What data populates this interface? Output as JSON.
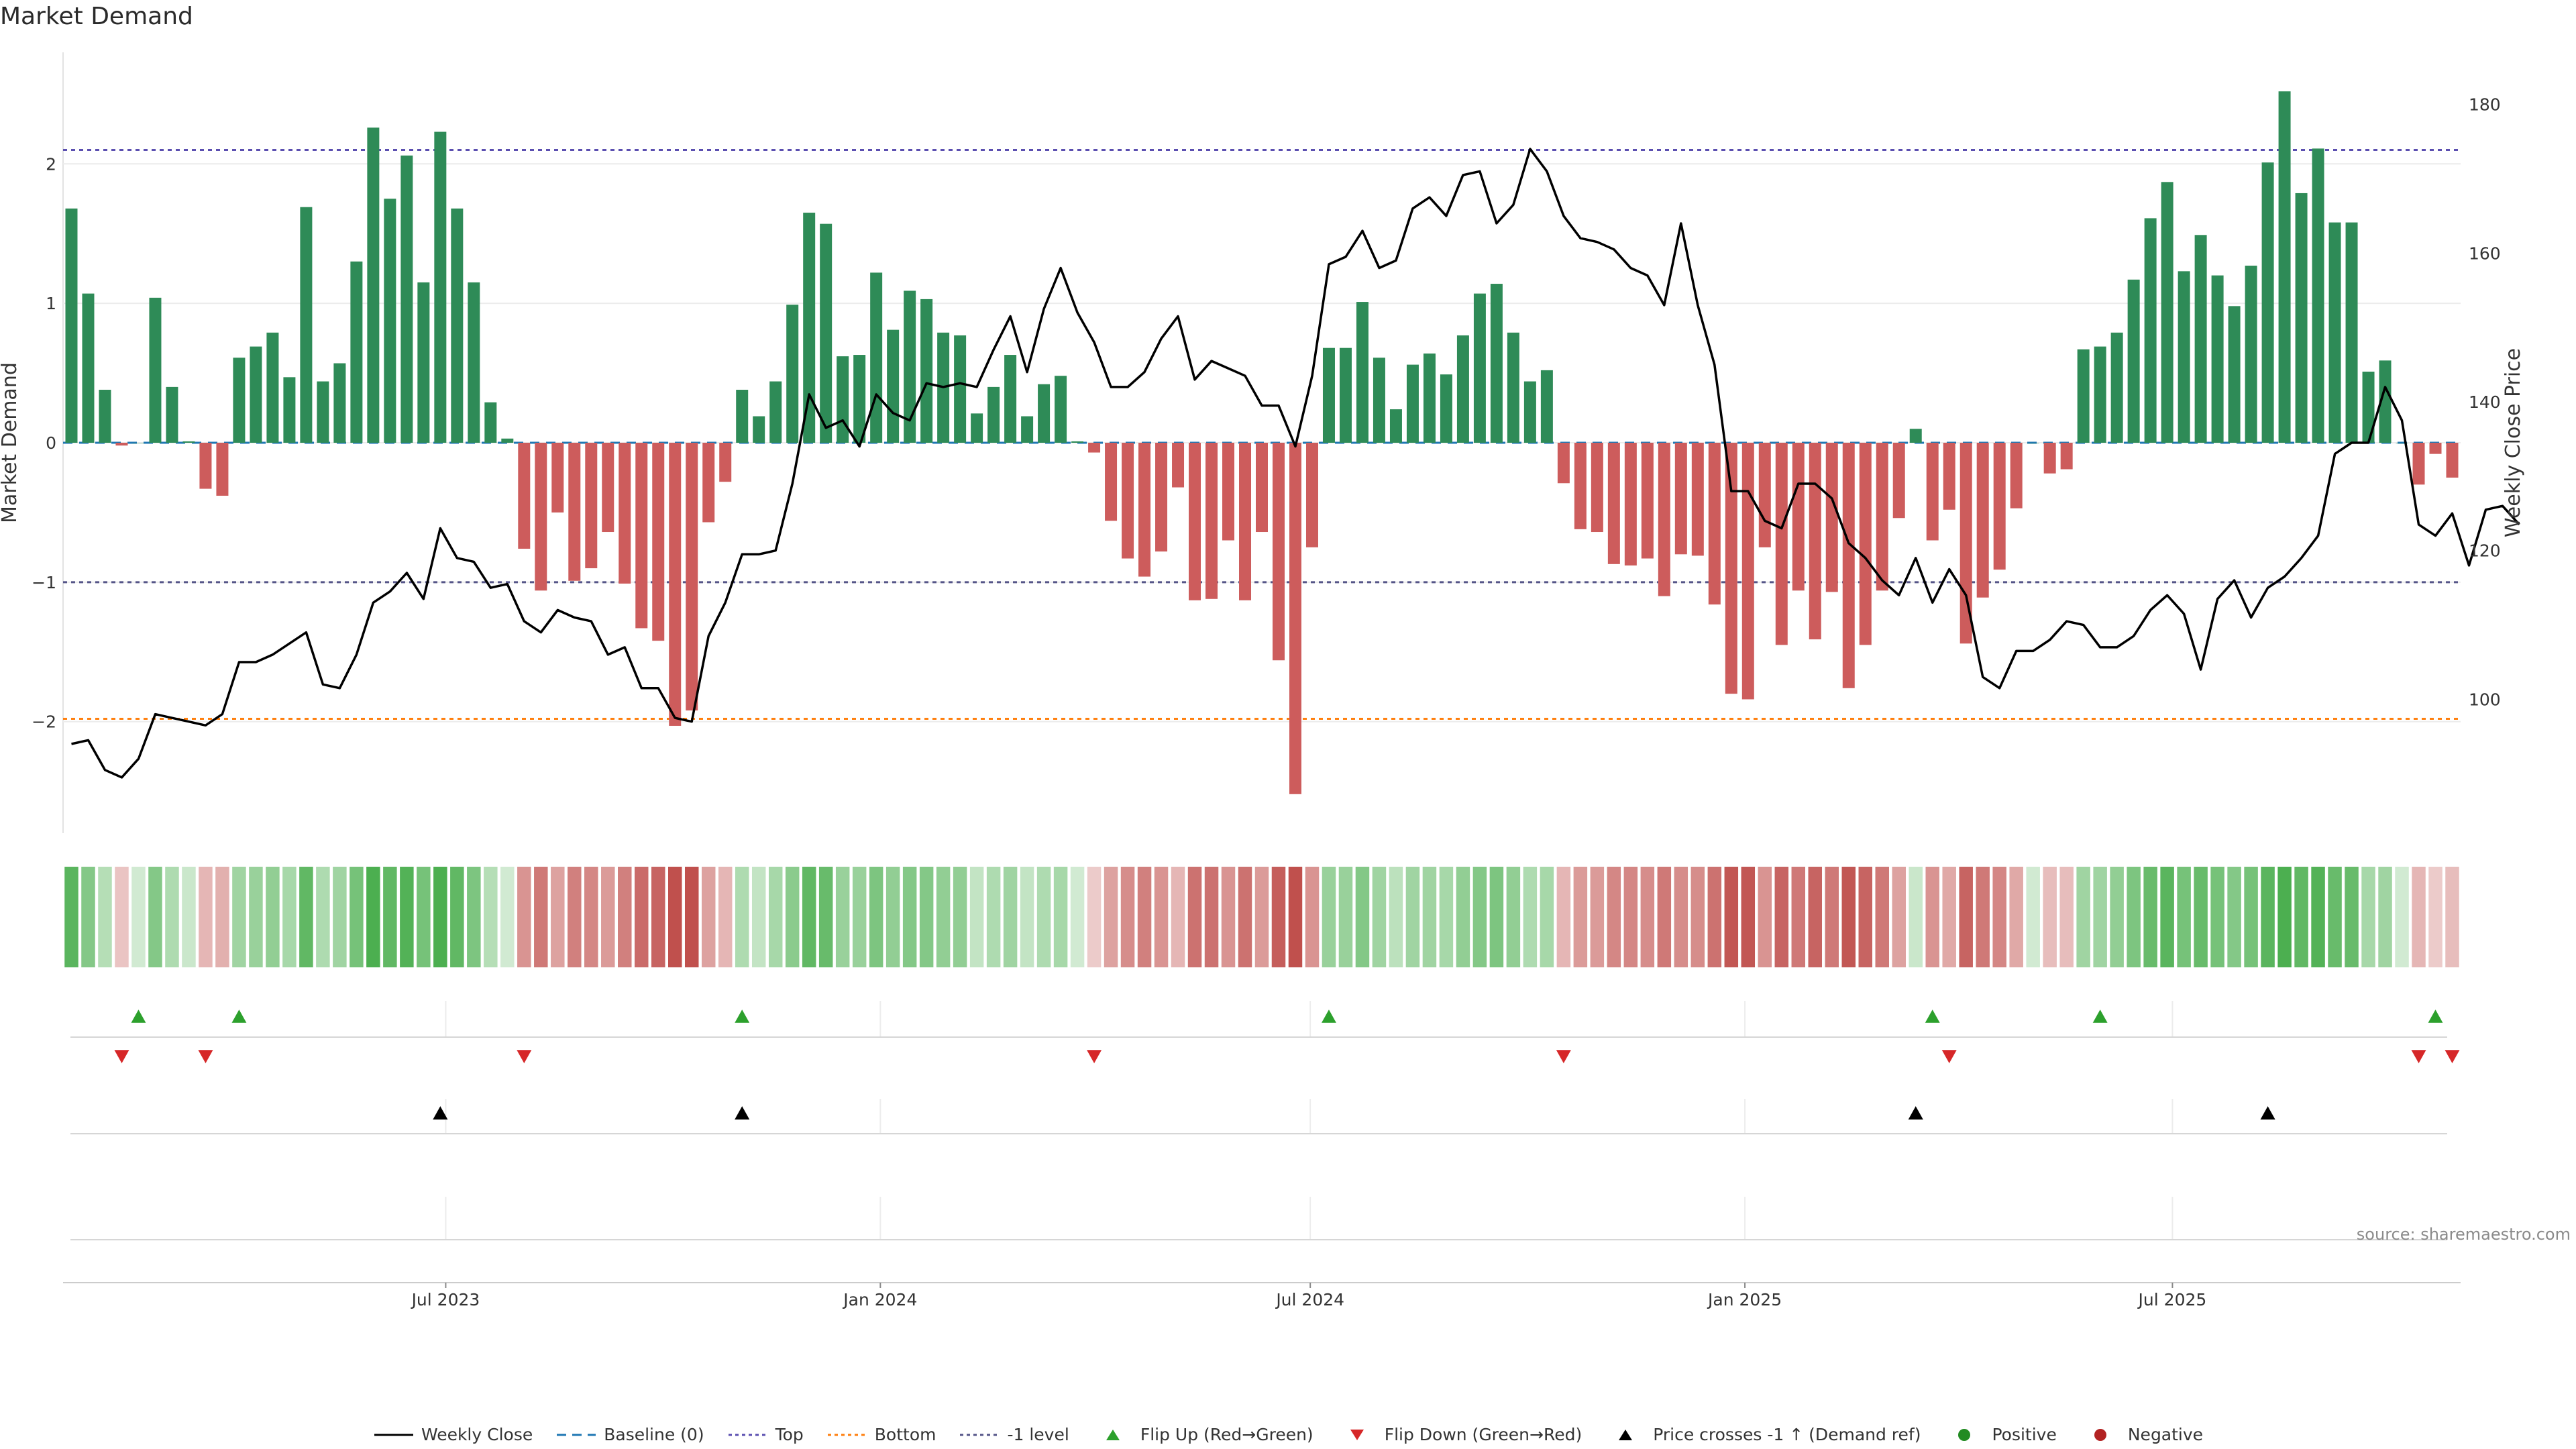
{
  "chart_data": {
    "type": "bar",
    "title": "Market Demand",
    "ylabel": "Market Demand",
    "y2label": "Weekly Close Price",
    "ylim": [
      -2.8,
      2.8
    ],
    "y2lim": [
      82,
      187
    ],
    "yticks": [
      -2,
      -1,
      0,
      1,
      2
    ],
    "y2ticks": [
      100,
      120,
      140,
      160,
      180
    ],
    "x_range": [
      "2023-01-20",
      "2025-10-31"
    ],
    "x_tick_labels": [
      "Jul 2023",
      "Jan 2024",
      "Jul 2024",
      "Jan 2025",
      "Jul 2025"
    ],
    "reference_lines": {
      "top": 2.1,
      "bottom": -1.98,
      "minus_one": -1.0,
      "baseline": 0
    },
    "demand": [
      1.68,
      1.07,
      0.38,
      -0.02,
      0,
      1.04,
      0.4,
      0.01,
      -0.33,
      -0.38,
      0.61,
      0.69,
      0.79,
      0.47,
      1.69,
      0.44,
      0.57,
      1.3,
      2.26,
      1.75,
      2.06,
      1.15,
      2.23,
      1.68,
      1.15,
      0.29,
      0.03,
      -0.76,
      -1.06,
      -0.5,
      -0.99,
      -0.9,
      -0.64,
      -1.01,
      -1.33,
      -1.42,
      -2.03,
      -1.92,
      -0.57,
      -0.28,
      0.38,
      0.19,
      0.44,
      0.99,
      1.65,
      1.57,
      0.62,
      0.63,
      1.22,
      0.81,
      1.09,
      1.03,
      0.79,
      0.77,
      0.21,
      0.4,
      0.63,
      0.19,
      0.42,
      0.48,
      0.01,
      -0.07,
      -0.56,
      -0.83,
      -0.96,
      -0.78,
      -0.32,
      -1.13,
      -1.12,
      -0.7,
      -1.13,
      -0.64,
      -1.56,
      -2.52,
      -0.75,
      0.68,
      0.68,
      1.01,
      0.61,
      0.24,
      0.56,
      0.64,
      0.49,
      0.77,
      1.07,
      1.14,
      0.79,
      0.44,
      0.52,
      -0.29,
      -0.62,
      -0.64,
      -0.87,
      -0.88,
      -0.83,
      -1.1,
      -0.8,
      -0.81,
      -1.16,
      -1.8,
      -1.84,
      -0.75,
      -1.45,
      -1.06,
      -1.41,
      -1.07,
      -1.76,
      -1.45,
      -1.06,
      -0.54,
      0.1,
      -0.7,
      -0.48,
      -1.44,
      -1.11,
      -0.91,
      -0.47,
      0,
      -0.22,
      -0.19,
      0.67,
      0.69,
      0.79,
      1.17,
      1.61,
      1.87,
      1.23,
      1.49,
      1.2,
      0.98,
      1.27,
      2.01,
      2.52,
      1.79,
      2.11,
      1.58,
      1.58,
      0.51,
      0.59,
      0,
      -0.3,
      -0.08,
      -0.25
    ],
    "price": [
      94,
      94.5,
      90.5,
      89.5,
      92,
      98,
      97.5,
      97,
      96.5,
      98,
      105,
      105,
      106,
      107.5,
      109,
      102,
      101.5,
      106,
      113,
      114.5,
      117,
      113.5,
      123,
      119,
      118.5,
      115,
      115.5,
      110.5,
      109,
      112,
      111,
      110.5,
      106,
      107,
      101.5,
      101.5,
      97.5,
      97,
      108.5,
      113,
      119.5,
      119.5,
      120,
      129,
      141,
      136.5,
      137.5,
      134,
      141,
      138.5,
      137.5,
      142.5,
      142,
      142.5,
      142,
      147,
      151.5,
      144,
      152.5,
      158,
      152,
      148,
      142,
      142,
      144,
      148.5,
      151.5,
      143,
      145.5,
      144.5,
      143.5,
      139.5,
      139.5,
      134,
      143.5,
      158.5,
      159.5,
      163,
      158,
      159,
      166,
      167.5,
      165,
      170.5,
      171,
      164,
      166.5,
      174,
      171,
      165,
      162,
      161.5,
      160.5,
      158,
      157,
      153,
      164,
      153,
      145,
      128,
      128,
      124,
      123,
      129,
      129,
      127,
      121,
      119,
      116,
      114,
      119,
      113,
      117.5,
      114,
      103,
      101.5,
      106.5,
      106.5,
      108,
      110.5,
      110,
      107,
      107,
      108.5,
      112,
      114,
      111.5,
      104,
      113.5,
      116,
      111,
      115,
      116.5,
      119,
      122,
      133,
      134.5,
      134.5,
      142,
      137.5,
      123.5,
      122,
      125,
      118,
      125.5,
      126,
      123.5
    ],
    "heat_intensity": [
      0.9,
      0.6,
      0.25,
      0.15,
      0.05,
      0.6,
      0.3,
      0.1,
      0.25,
      0.3,
      0.4,
      0.45,
      0.5,
      0.35,
      0.85,
      0.3,
      0.4,
      0.7,
      1.0,
      0.85,
      0.95,
      0.7,
      1.0,
      0.85,
      0.65,
      0.25,
      0.05,
      0.5,
      0.7,
      0.4,
      0.65,
      0.6,
      0.45,
      0.65,
      0.8,
      0.85,
      1.0,
      1.0,
      0.4,
      0.25,
      0.3,
      0.15,
      0.35,
      0.55,
      0.85,
      0.8,
      0.45,
      0.45,
      0.65,
      0.5,
      0.6,
      0.6,
      0.5,
      0.5,
      0.15,
      0.3,
      0.4,
      0.15,
      0.3,
      0.35,
      0.05,
      0.1,
      0.4,
      0.55,
      0.65,
      0.5,
      0.25,
      0.75,
      0.75,
      0.5,
      0.75,
      0.45,
      0.9,
      1.0,
      0.5,
      0.45,
      0.45,
      0.6,
      0.4,
      0.2,
      0.4,
      0.4,
      0.35,
      0.5,
      0.6,
      0.65,
      0.5,
      0.3,
      0.35,
      0.25,
      0.45,
      0.45,
      0.6,
      0.6,
      0.55,
      0.7,
      0.55,
      0.55,
      0.75,
      0.95,
      0.95,
      0.5,
      0.85,
      0.7,
      0.85,
      0.7,
      0.95,
      0.85,
      0.7,
      0.4,
      0.1,
      0.5,
      0.35,
      0.85,
      0.7,
      0.6,
      0.35,
      0.05,
      0.2,
      0.2,
      0.4,
      0.4,
      0.5,
      0.65,
      0.8,
      0.9,
      0.7,
      0.8,
      0.7,
      0.6,
      0.7,
      0.9,
      1.0,
      0.85,
      0.95,
      0.8,
      0.8,
      0.35,
      0.4,
      0.05,
      0.25,
      0.1,
      0.2
    ],
    "flip_up": [
      4,
      10,
      40,
      75,
      111,
      121,
      141
    ],
    "flip_down": [
      3,
      8,
      27,
      61,
      89,
      112,
      140,
      142
    ],
    "price_cross": [
      22,
      40,
      110,
      131
    ],
    "source": "source: sharemaestro.com"
  },
  "legend": [
    {
      "key": "weekly_close",
      "label": "Weekly Close",
      "color": "#000000"
    },
    {
      "key": "baseline",
      "label": "Baseline (0)",
      "color": "#1f77b4"
    },
    {
      "key": "top",
      "label": "Top",
      "color": "#5b4fb0"
    },
    {
      "key": "bottom",
      "label": "Bottom",
      "color": "#ff7f0e"
    },
    {
      "key": "minus_one",
      "label": "-1 level",
      "color": "#555588"
    },
    {
      "key": "flip_up",
      "label": "Flip Up (Red→Green)",
      "color": "#2ca02c"
    },
    {
      "key": "flip_down",
      "label": "Flip Down (Green→Red)",
      "color": "#d62728"
    },
    {
      "key": "price_cross",
      "label": "Price crosses -1 ↑ (Demand ref)",
      "color": "#000000"
    },
    {
      "key": "positive",
      "label": "Positive",
      "color": "#228b22"
    },
    {
      "key": "negative",
      "label": "Negative",
      "color": "#b22222"
    }
  ],
  "colors": {
    "pos_bar": "#2e8b57",
    "neg_bar": "#cd5c5c",
    "heat_pos": "#4caf50",
    "heat_neg": "#c0504d"
  }
}
